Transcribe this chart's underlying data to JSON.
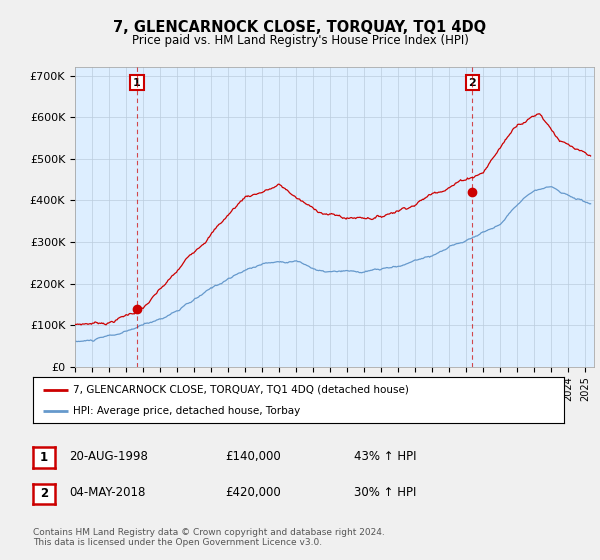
{
  "title": "7, GLENCARNOCK CLOSE, TORQUAY, TQ1 4DQ",
  "subtitle": "Price paid vs. HM Land Registry's House Price Index (HPI)",
  "legend_label_red": "7, GLENCARNOCK CLOSE, TORQUAY, TQ1 4DQ (detached house)",
  "legend_label_blue": "HPI: Average price, detached house, Torbay",
  "annotation1_label": "1",
  "annotation1_date": "20-AUG-1998",
  "annotation1_price": "£140,000",
  "annotation1_hpi": "43% ↑ HPI",
  "annotation2_label": "2",
  "annotation2_date": "04-MAY-2018",
  "annotation2_price": "£420,000",
  "annotation2_hpi": "30% ↑ HPI",
  "footnote": "Contains HM Land Registry data © Crown copyright and database right 2024.\nThis data is licensed under the Open Government Licence v3.0.",
  "ylim": [
    0,
    720000
  ],
  "yticks": [
    0,
    100000,
    200000,
    300000,
    400000,
    500000,
    600000,
    700000
  ],
  "ytick_labels": [
    "£0",
    "£100K",
    "£200K",
    "£300K",
    "£400K",
    "£500K",
    "£600K",
    "£700K"
  ],
  "red_color": "#cc0000",
  "blue_color": "#6699cc",
  "plot_bg_color": "#ddeeff",
  "background_color": "#f0f0f0",
  "grid_color": "#bbccdd",
  "sale1_x": 1998.64,
  "sale1_y": 140000,
  "sale2_x": 2018.34,
  "sale2_y": 420000,
  "xmin": 1995,
  "xmax": 2025.5
}
